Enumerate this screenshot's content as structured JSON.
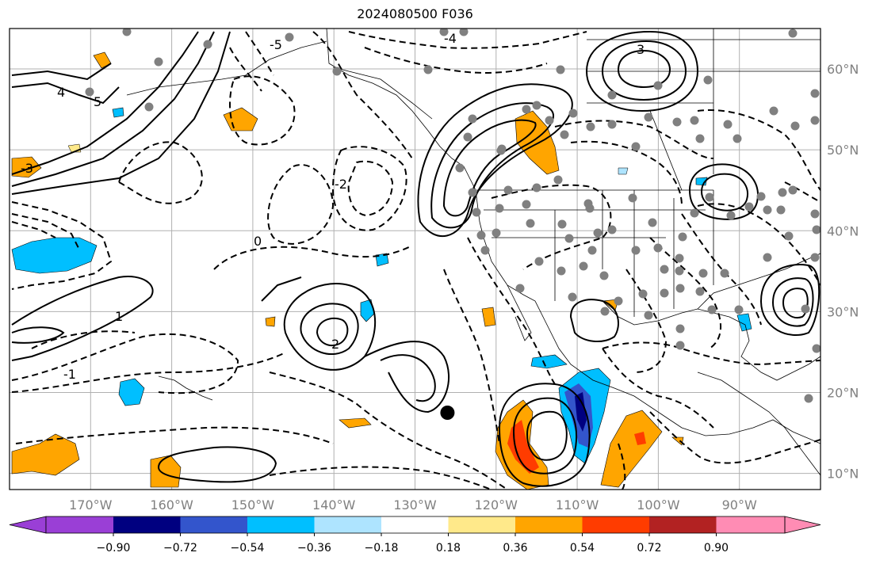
{
  "title": "2024080500 F036",
  "map": {
    "lon_range": [
      -180,
      -80
    ],
    "lat_range": [
      8,
      65
    ],
    "lon_ticks": [
      "170°W",
      "160°W",
      "150°W",
      "140°W",
      "130°W",
      "120°W",
      "110°W",
      "100°W",
      "90°W"
    ],
    "lat_ticks": [
      "10°N",
      "20°N",
      "30°N",
      "40°N",
      "50°N",
      "60°N"
    ],
    "grid": true,
    "contour_labels": [
      "-5",
      "-4",
      "-3",
      "-2",
      "-1",
      "0",
      "1",
      "2",
      "3",
      "4",
      "5"
    ],
    "storm_marker": {
      "lon": -126,
      "lat": 17.5
    }
  },
  "colorbar": {
    "ticks": [
      "−0.90",
      "−0.72",
      "−0.54",
      "−0.36",
      "−0.18",
      "0.18",
      "0.36",
      "0.54",
      "0.72",
      "0.90"
    ],
    "colors": [
      "#9a3fd6",
      "#000080",
      "#3355cc",
      "#00bfff",
      "#aee4ff",
      "#ffffff",
      "#ffe98a",
      "#ffa500",
      "#ff3c00",
      "#b22222",
      "#ff8cb4"
    ],
    "extend": "both"
  }
}
